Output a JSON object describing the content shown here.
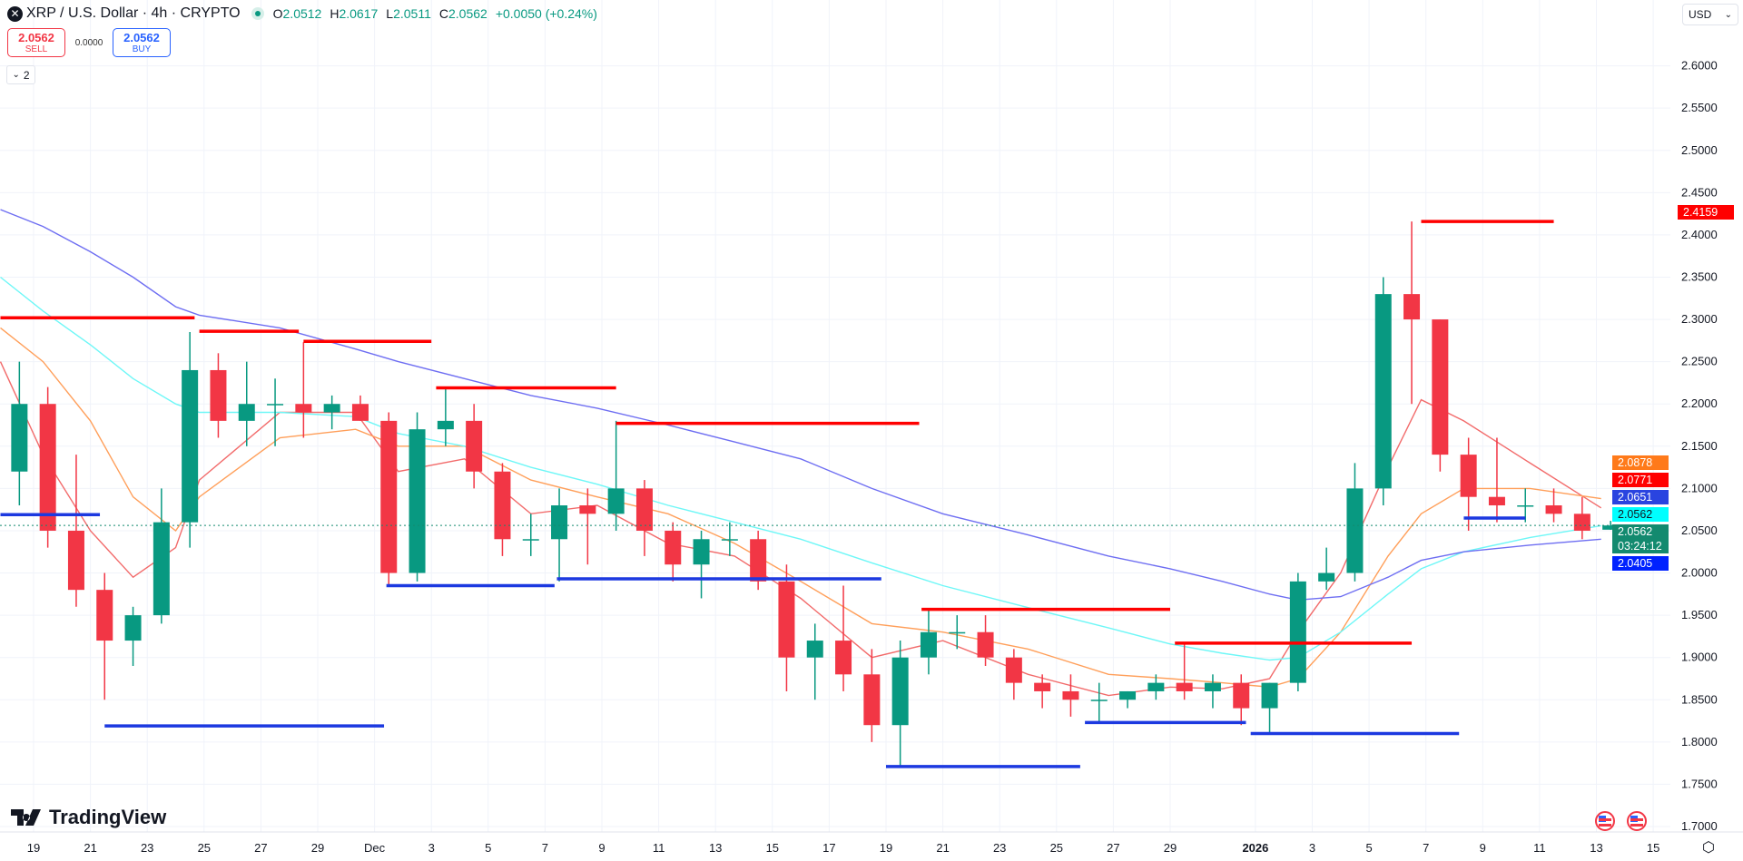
{
  "header": {
    "symbol_title": "XRP / U.S. Dollar · 4h · CRYPTO",
    "ohlc": [
      {
        "key": "O",
        "value": "2.0512"
      },
      {
        "key": "H",
        "value": "2.0617"
      },
      {
        "key": "L",
        "value": "2.0511"
      },
      {
        "key": "C",
        "value": "2.0562"
      }
    ],
    "change": "+0.0050 (+0.24%)"
  },
  "trade": {
    "sell_price": "2.0562",
    "sell_label": "SELL",
    "spread": "0.0000",
    "buy_price": "2.0562",
    "buy_label": "BUY"
  },
  "indicators_toggle": {
    "count": "2"
  },
  "currency": "USD",
  "logo": "TradingView",
  "price_labels": [
    {
      "value": "2.4159",
      "color": "#ff0000"
    },
    {
      "value": "2.0878",
      "color": "#ff7a1a"
    },
    {
      "value": "2.0771",
      "color": "#ff0000"
    },
    {
      "value": "2.0651",
      "color": "#2a44e0"
    },
    {
      "value": "2.0562",
      "color": "#00ffff"
    },
    {
      "value": "2.0562",
      "sub": "03:24:12",
      "color": "#138a6f"
    },
    {
      "value": "2.0405",
      "color": "#0022ff"
    }
  ],
  "colors": {
    "up": "#089981",
    "down": "#f23645",
    "resistance": "#ff0000",
    "support": "#1c39e0",
    "grid": "#f0f3fa",
    "current_line": "#138a6f"
  },
  "chart_data": {
    "type": "candlestick",
    "interval": "4h",
    "ylim": [
      1.7,
      2.6
    ],
    "grid": true,
    "current_price": 2.0562,
    "y_ticks": [
      "2.6000",
      "2.5500",
      "2.5000",
      "2.4500",
      "2.4000",
      "2.3500",
      "2.3000",
      "2.2500",
      "2.2000",
      "2.1500",
      "2.1000",
      "2.0500",
      "2.0000",
      "1.9500",
      "1.9000",
      "1.8500",
      "1.8000",
      "1.7500",
      "1.7000"
    ],
    "x_ticks": [
      {
        "label": "19",
        "date": "2025-11-19"
      },
      {
        "label": "21",
        "date": "2025-11-21"
      },
      {
        "label": "23",
        "date": "2025-11-23"
      },
      {
        "label": "25",
        "date": "2025-11-25"
      },
      {
        "label": "27",
        "date": "2025-11-27"
      },
      {
        "label": "29",
        "date": "2025-11-29"
      },
      {
        "label": "Dec",
        "date": "2025-12-01"
      },
      {
        "label": "3",
        "date": "2025-12-03"
      },
      {
        "label": "5",
        "date": "2025-12-05"
      },
      {
        "label": "7",
        "date": "2025-12-07"
      },
      {
        "label": "9",
        "date": "2025-12-09"
      },
      {
        "label": "11",
        "date": "2025-12-11"
      },
      {
        "label": "13",
        "date": "2025-12-13"
      },
      {
        "label": "15",
        "date": "2025-12-15"
      },
      {
        "label": "17",
        "date": "2025-12-17"
      },
      {
        "label": "19",
        "date": "2025-12-19"
      },
      {
        "label": "21",
        "date": "2025-12-21"
      },
      {
        "label": "23",
        "date": "2025-12-23"
      },
      {
        "label": "25",
        "date": "2025-12-25"
      },
      {
        "label": "27",
        "date": "2025-12-27"
      },
      {
        "label": "29",
        "date": "2025-12-29"
      },
      {
        "label": "2026",
        "date": "2026-01-01"
      },
      {
        "label": "3",
        "date": "2026-01-03"
      },
      {
        "label": "5",
        "date": "2026-01-05"
      },
      {
        "label": "7",
        "date": "2026-01-07"
      },
      {
        "label": "9",
        "date": "2026-01-09"
      },
      {
        "label": "11",
        "date": "2026-01-11"
      },
      {
        "label": "13",
        "date": "2026-01-13"
      },
      {
        "label": "15",
        "date": "2026-01-15"
      }
    ],
    "candles_daily_ohlc": [
      [
        "2025-11-18",
        2.12,
        2.25,
        2.08,
        2.2
      ],
      [
        "2025-11-19",
        2.2,
        2.22,
        2.03,
        2.05
      ],
      [
        "2025-11-20",
        2.05,
        2.14,
        1.96,
        1.98
      ],
      [
        "2025-11-21",
        1.98,
        2.0,
        1.85,
        1.92
      ],
      [
        "2025-11-22",
        1.92,
        1.96,
        1.89,
        1.95
      ],
      [
        "2025-11-23",
        1.95,
        2.1,
        1.94,
        2.06
      ],
      [
        "2025-11-24",
        2.06,
        2.285,
        2.03,
        2.24
      ],
      [
        "2025-11-25",
        2.24,
        2.26,
        2.16,
        2.18
      ],
      [
        "2025-11-26",
        2.18,
        2.25,
        2.15,
        2.2
      ],
      [
        "2025-11-27",
        2.2,
        2.23,
        2.15,
        2.2
      ],
      [
        "2025-11-28",
        2.2,
        2.273,
        2.16,
        2.19
      ],
      [
        "2025-11-29",
        2.19,
        2.21,
        2.17,
        2.2
      ],
      [
        "2025-11-30",
        2.2,
        2.21,
        2.18,
        2.18
      ],
      [
        "2025-12-01",
        2.18,
        2.19,
        1.985,
        2.0
      ],
      [
        "2025-12-02",
        2.0,
        2.19,
        1.99,
        2.17
      ],
      [
        "2025-12-03",
        2.17,
        2.22,
        2.15,
        2.18
      ],
      [
        "2025-12-04",
        2.18,
        2.2,
        2.1,
        2.12
      ],
      [
        "2025-12-05",
        2.12,
        2.13,
        2.02,
        2.04
      ],
      [
        "2025-12-06",
        2.04,
        2.07,
        2.02,
        2.04
      ],
      [
        "2025-12-07",
        2.04,
        2.1,
        1.99,
        2.08
      ],
      [
        "2025-12-08",
        2.08,
        2.1,
        2.01,
        2.07
      ],
      [
        "2025-12-09",
        2.07,
        2.18,
        2.05,
        2.1
      ],
      [
        "2025-12-10",
        2.1,
        2.11,
        2.02,
        2.05
      ],
      [
        "2025-12-11",
        2.05,
        2.06,
        1.99,
        2.01
      ],
      [
        "2025-12-12",
        2.01,
        2.05,
        1.97,
        2.04
      ],
      [
        "2025-12-13",
        2.04,
        2.06,
        2.02,
        2.04
      ],
      [
        "2025-12-14",
        2.04,
        2.05,
        1.98,
        1.99
      ],
      [
        "2025-12-15",
        1.99,
        2.01,
        1.86,
        1.9
      ],
      [
        "2025-12-16",
        1.9,
        1.94,
        1.85,
        1.92
      ],
      [
        "2025-12-17",
        1.92,
        1.985,
        1.86,
        1.88
      ],
      [
        "2025-12-18",
        1.88,
        1.91,
        1.8,
        1.82
      ],
      [
        "2025-12-19",
        1.82,
        1.92,
        1.771,
        1.9
      ],
      [
        "2025-12-20",
        1.9,
        1.957,
        1.88,
        1.93
      ],
      [
        "2025-12-21",
        1.93,
        1.95,
        1.91,
        1.93
      ],
      [
        "2025-12-22",
        1.93,
        1.95,
        1.89,
        1.9
      ],
      [
        "2025-12-23",
        1.9,
        1.91,
        1.85,
        1.87
      ],
      [
        "2025-12-24",
        1.87,
        1.88,
        1.84,
        1.86
      ],
      [
        "2025-12-25",
        1.86,
        1.88,
        1.83,
        1.85
      ],
      [
        "2025-12-26",
        1.85,
        1.87,
        1.823,
        1.85
      ],
      [
        "2025-12-27",
        1.85,
        1.86,
        1.84,
        1.86
      ],
      [
        "2025-12-28",
        1.86,
        1.88,
        1.85,
        1.87
      ],
      [
        "2025-12-29",
        1.87,
        1.917,
        1.85,
        1.86
      ],
      [
        "2025-12-30",
        1.86,
        1.88,
        1.84,
        1.87
      ],
      [
        "2025-12-31",
        1.87,
        1.88,
        1.82,
        1.84
      ],
      [
        "2026-01-01",
        1.84,
        1.87,
        1.81,
        1.87
      ],
      [
        "2026-01-02",
        1.87,
        2.0,
        1.86,
        1.99
      ],
      [
        "2026-01-03",
        1.99,
        2.03,
        1.98,
        2.0
      ],
      [
        "2026-01-04",
        2.0,
        2.13,
        1.99,
        2.1
      ],
      [
        "2026-01-05",
        2.1,
        2.35,
        2.08,
        2.33
      ],
      [
        "2026-01-06",
        2.33,
        2.4159,
        2.2,
        2.3
      ],
      [
        "2026-01-07",
        2.3,
        2.3,
        2.12,
        2.14
      ],
      [
        "2026-01-08",
        2.14,
        2.16,
        2.05,
        2.09
      ],
      [
        "2026-01-09",
        2.09,
        2.16,
        2.06,
        2.08
      ],
      [
        "2026-01-10",
        2.08,
        2.1,
        2.06,
        2.08
      ],
      [
        "2026-01-11",
        2.08,
        2.1,
        2.06,
        2.07
      ],
      [
        "2026-01-12",
        2.07,
        2.09,
        2.04,
        2.05
      ],
      [
        "2026-01-13",
        2.0512,
        2.0617,
        2.0511,
        2.0562
      ]
    ],
    "moving_averages": {
      "times": [
        "2025-11-17 20:00",
        "2025-11-19 08:00",
        "2025-11-21 00:00",
        "2025-11-22 12:00",
        "2025-11-24 00:00",
        "2025-11-24 20:00",
        "2025-11-27 16:00",
        "2025-11-30 08:00",
        "2025-12-01 20:00",
        "2025-12-04 04:00",
        "2025-12-06 12:00",
        "2025-12-08 20:00",
        "2025-12-11 08:00",
        "2025-12-13 16:00",
        "2025-12-16 00:00",
        "2025-12-18 12:00",
        "2025-12-21 00:00",
        "2025-12-24 00:00",
        "2025-12-26 20:00",
        "2025-12-29 00:00",
        "2025-12-30 20:00",
        "2026-01-01 12:00",
        "2026-01-02 12:00",
        "2026-01-04 00:00",
        "2026-01-05 16:00",
        "2026-01-06 20:00",
        "2026-01-08 08:00",
        "2026-01-10 16:00",
        "2026-01-13 04:00"
      ],
      "series": [
        {
          "color": "#f26b6b",
          "values": [
            2.25,
            2.14,
            2.05,
            1.995,
            2.03,
            2.11,
            2.19,
            2.19,
            2.12,
            2.135,
            2.07,
            2.08,
            2.035,
            2.02,
            1.97,
            1.9,
            1.92,
            1.88,
            1.855,
            1.865,
            1.863,
            1.875,
            1.93,
            2.0,
            2.125,
            2.205,
            2.18,
            2.13,
            2.077
          ]
        },
        {
          "color": "#ff9f5a",
          "values": [
            2.29,
            2.25,
            2.18,
            2.09,
            2.05,
            2.09,
            2.16,
            2.17,
            2.15,
            2.15,
            2.11,
            2.09,
            2.07,
            2.035,
            1.99,
            1.94,
            1.93,
            1.91,
            1.88,
            1.875,
            1.87,
            1.865,
            1.875,
            1.93,
            2.02,
            2.07,
            2.1,
            2.1,
            2.088
          ]
        },
        {
          "color": "#6ef7f7",
          "values": [
            2.35,
            2.31,
            2.27,
            2.23,
            2.2,
            2.19,
            2.19,
            2.185,
            2.165,
            2.15,
            2.125,
            2.105,
            2.08,
            2.06,
            2.04,
            2.012,
            1.985,
            1.959,
            1.935,
            1.916,
            1.905,
            1.897,
            1.9,
            1.93,
            1.975,
            2.005,
            2.025,
            2.042,
            2.056
          ]
        },
        {
          "color": "#6e6ef2",
          "values": [
            2.43,
            2.41,
            2.38,
            2.35,
            2.315,
            2.305,
            2.29,
            2.265,
            2.25,
            2.23,
            2.21,
            2.195,
            2.175,
            2.155,
            2.135,
            2.1,
            2.07,
            2.045,
            2.02,
            2.005,
            1.99,
            1.975,
            1.968,
            1.972,
            1.995,
            2.015,
            2.025,
            2.033,
            2.04
          ]
        }
      ]
    },
    "levels": [
      {
        "kind": "resistance",
        "price": 2.302,
        "start": "2025-11-17 20:00",
        "end": "2025-11-24 16:00"
      },
      {
        "kind": "resistance",
        "price": 2.286,
        "start": "2025-11-24 20:00",
        "end": "2025-11-28 08:00"
      },
      {
        "kind": "resistance",
        "price": 2.274,
        "start": "2025-11-28 12:00",
        "end": "2025-12-03 00:00"
      },
      {
        "kind": "resistance",
        "price": 2.219,
        "start": "2025-12-03 04:00",
        "end": "2025-12-09 12:00"
      },
      {
        "kind": "resistance",
        "price": 2.177,
        "start": "2025-12-09 12:00",
        "end": "2025-12-20 04:00"
      },
      {
        "kind": "resistance",
        "price": 1.957,
        "start": "2025-12-20 06:00",
        "end": "2025-12-29 00:00"
      },
      {
        "kind": "resistance",
        "price": 1.917,
        "start": "2025-12-29 04:00",
        "end": "2026-01-06 12:00"
      },
      {
        "kind": "resistance",
        "price": 2.4159,
        "start": "2026-01-06 20:00",
        "end": "2026-01-11 12:00"
      },
      {
        "kind": "support",
        "price": 2.069,
        "start": "2025-11-17 20:00",
        "end": "2025-11-21 08:00"
      },
      {
        "kind": "support",
        "price": 1.819,
        "start": "2025-11-21 12:00",
        "end": "2025-12-01 08:00"
      },
      {
        "kind": "support",
        "price": 1.985,
        "start": "2025-12-01 10:00",
        "end": "2025-12-07 08:00"
      },
      {
        "kind": "support",
        "price": 1.993,
        "start": "2025-12-07 10:00",
        "end": "2025-12-18 20:00"
      },
      {
        "kind": "support",
        "price": 1.771,
        "start": "2025-12-19 00:00",
        "end": "2025-12-25 20:00"
      },
      {
        "kind": "support",
        "price": 1.823,
        "start": "2025-12-26 00:00",
        "end": "2025-12-31 16:00"
      },
      {
        "kind": "support",
        "price": 1.81,
        "start": "2025-12-31 20:00",
        "end": "2026-01-08 04:00"
      },
      {
        "kind": "support",
        "price": 2.065,
        "start": "2026-01-08 08:00",
        "end": "2026-01-10 12:00"
      }
    ]
  }
}
